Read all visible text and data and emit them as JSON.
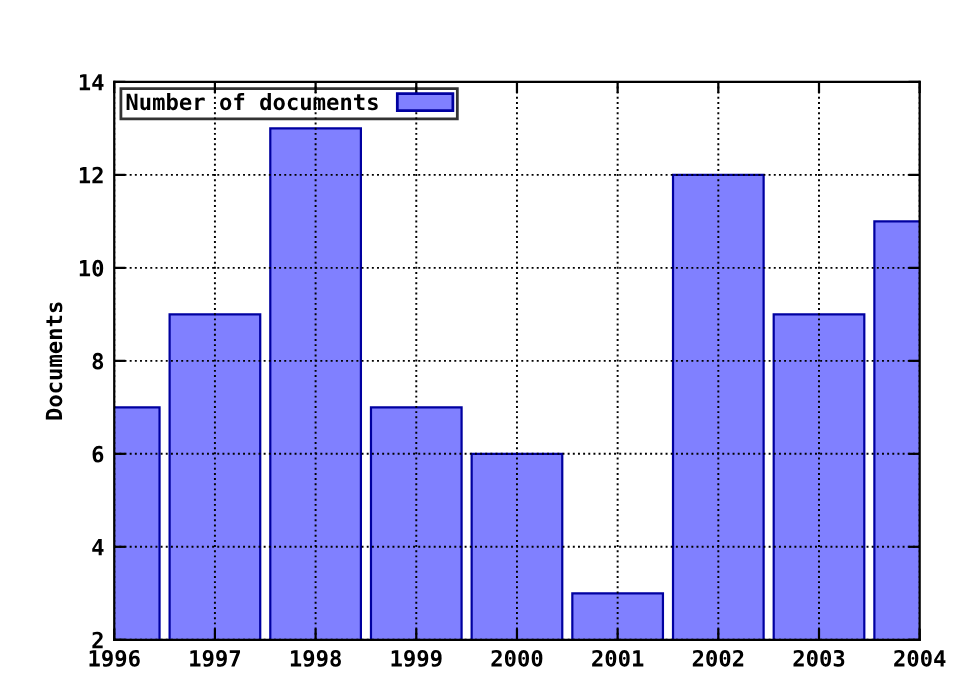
{
  "chart_data": {
    "type": "bar",
    "ylabel": "Documents",
    "x": [
      1996,
      1997,
      1998,
      1999,
      2000,
      2001,
      2002,
      2003,
      2004
    ],
    "series": [
      {
        "name": "Number of documents",
        "color": "#8080ff",
        "values": [
          7,
          9,
          13,
          7,
          6,
          3,
          12,
          9,
          11
        ]
      }
    ],
    "xlim": [
      1996,
      2004
    ],
    "xticks": [
      1996,
      1997,
      1998,
      1999,
      2000,
      2001,
      2002,
      2003,
      2004
    ],
    "ylim": [
      2,
      14
    ],
    "yticks": [
      2,
      4,
      6,
      8,
      10,
      12,
      14
    ],
    "grid": true,
    "legend": "top left",
    "line_style": "dotted"
  }
}
